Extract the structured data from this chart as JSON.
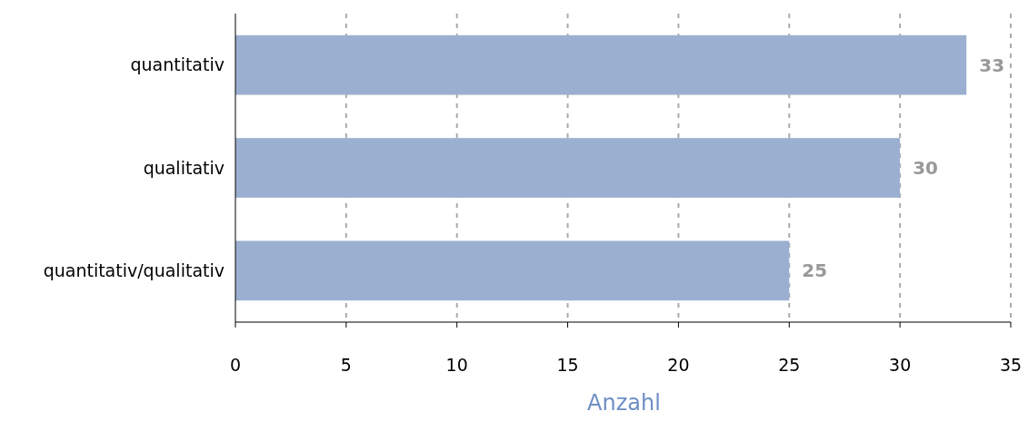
{
  "chart_data": {
    "type": "bar",
    "orientation": "horizontal",
    "categories": [
      "quantitativ",
      "qualitativ",
      "quantitativ/qualitativ"
    ],
    "values": [
      33,
      30,
      25
    ],
    "color": "#9bb0d0",
    "xlabel": "Anzahl",
    "xlim": [
      0,
      35
    ],
    "xticks": [
      0,
      5,
      10,
      15,
      20,
      25,
      30,
      35
    ],
    "grid": "x",
    "data_labels": true
  }
}
